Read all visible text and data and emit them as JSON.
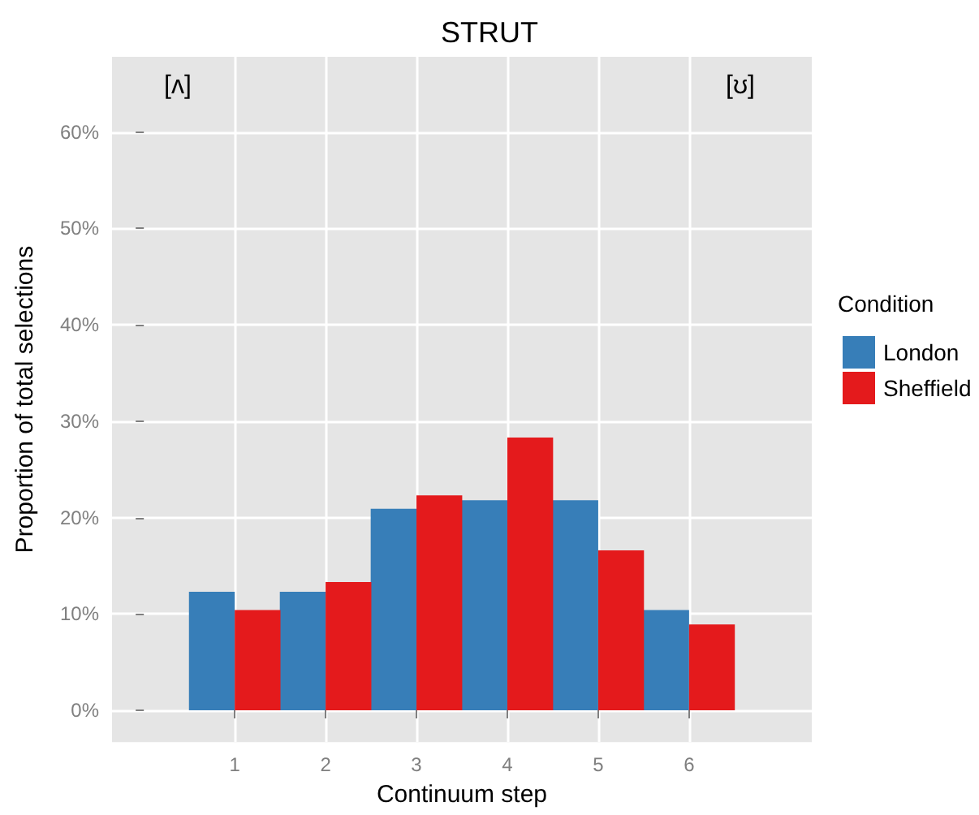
{
  "chart_data": {
    "type": "bar",
    "title": "STRUT",
    "xlabel": "Continuum step",
    "ylabel": "Proportion of total selections",
    "legend_title": "Condition",
    "x": [
      1,
      2,
      3,
      4,
      5,
      6
    ],
    "series": [
      {
        "name": "London",
        "color": "#377eb8",
        "values": [
          12.3,
          12.3,
          20.9,
          21.8,
          21.8,
          10.4
        ]
      },
      {
        "name": "Sheffield",
        "color": "#e41a1c",
        "values": [
          10.4,
          13.3,
          22.3,
          28.3,
          16.6,
          8.9
        ]
      }
    ],
    "xlim": [
      -0.35,
      7.35
    ],
    "xticks": [
      1,
      2,
      3,
      4,
      5,
      6
    ],
    "ylim": [
      -3.3,
      67.8
    ],
    "yticks": [
      {
        "value": 0,
        "label": "0%"
      },
      {
        "value": 10,
        "label": "10%"
      },
      {
        "value": 20,
        "label": "20%"
      },
      {
        "value": 30,
        "label": "30%"
      },
      {
        "value": 40,
        "label": "40%"
      },
      {
        "value": 50,
        "label": "50%"
      },
      {
        "value": 60,
        "label": "60%"
      }
    ],
    "annotations": [
      "[ʌ]",
      "[ʊ]"
    ],
    "grid": true,
    "legend": "right"
  }
}
